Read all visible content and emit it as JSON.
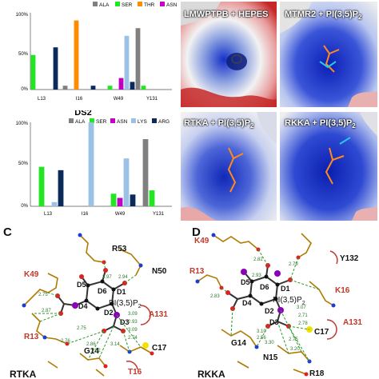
{
  "charts": {
    "colors": {
      "ALA": "#808080",
      "SER": "#21e621",
      "THR": "#ff8c00",
      "ASN": "#c000c0",
      "LYS": "#9bc2e6",
      "ARG": "#0a2a5a"
    },
    "top": {
      "title": "",
      "legend": [
        "ALA",
        "SER",
        "THR",
        "ASN",
        "LYS",
        "ARG"
      ],
      "y_ticks": [
        "100%",
        "50%",
        "0%"
      ]
    },
    "bottom": {
      "title": "DS2",
      "legend": [
        "ALA",
        "SER",
        "ASN",
        "LYS",
        "ARG"
      ],
      "y_ticks": [
        "100%",
        "50%",
        "0%"
      ]
    }
  },
  "chart_data": [
    {
      "type": "bar",
      "title": "",
      "categories": [
        "L13",
        "I16",
        "W49",
        "Y131"
      ],
      "series": [
        {
          "name": "ALA",
          "values": [
            0,
            5,
            0,
            80
          ]
        },
        {
          "name": "SER",
          "values": [
            45,
            0,
            5,
            5
          ]
        },
        {
          "name": "THR",
          "values": [
            0,
            90,
            0,
            0
          ]
        },
        {
          "name": "ASN",
          "values": [
            0,
            0,
            15,
            0
          ]
        },
        {
          "name": "LYS",
          "values": [
            0,
            0,
            70,
            0
          ]
        },
        {
          "name": "ARG",
          "values": [
            55,
            5,
            10,
            0
          ]
        }
      ],
      "ylim": [
        0,
        100
      ],
      "legend_position": "top"
    },
    {
      "type": "bar",
      "title": "DS2",
      "categories": [
        "L13",
        "I16",
        "W49",
        "Y131"
      ],
      "series": [
        {
          "name": "ALA",
          "values": [
            0,
            0,
            0,
            80
          ]
        },
        {
          "name": "SER",
          "values": [
            47,
            0,
            15,
            19
          ]
        },
        {
          "name": "ASN",
          "values": [
            0,
            0,
            10,
            0
          ]
        },
        {
          "name": "LYS",
          "values": [
            5,
            100,
            57,
            0
          ]
        },
        {
          "name": "ARG",
          "values": [
            43,
            0,
            14,
            0
          ]
        }
      ],
      "ylim": [
        0,
        100
      ],
      "legend_position": "top"
    }
  ],
  "surfaces": {
    "p1": "LMWPTPB + HEPES",
    "p2": "MTMR2 + PI(3,5)P",
    "p2_sub": "2",
    "p3": "RTKA + PI(3,5)P",
    "p3_sub": "2",
    "p4": "RKKA + PI(3,5)P",
    "p4_sub": "2"
  },
  "panel_c": {
    "letter": "C",
    "name": "RTKA",
    "ligand": "PI(3,5)P",
    "ligand_sub": "2",
    "residues_black": [
      "R53",
      "N50",
      "G14",
      "C17"
    ],
    "residues_red": [
      "K49",
      "R13",
      "A131",
      "T16"
    ],
    "atoms": [
      "D5",
      "D6",
      "D1",
      "D4",
      "D2",
      "D3"
    ],
    "distances": [
      "2.97",
      "2.94",
      "2.75",
      "2.87",
      "3.09",
      "2.93",
      "3.09",
      "2.74",
      "2.76",
      "2.86",
      "2.52",
      "3.14",
      "2.75"
    ]
  },
  "panel_d": {
    "letter": "D",
    "name": "RKKA",
    "ligand": "PI(3,5)P",
    "ligand_sub": "2",
    "residues_black": [
      "Y132",
      "C17",
      "G14",
      "N15",
      "R18"
    ],
    "residues_red": [
      "K49",
      "R13",
      "K16",
      "A131"
    ],
    "atoms": [
      "D5",
      "D6",
      "D1",
      "D4",
      "D2",
      "D3"
    ],
    "distances": [
      "2.82",
      "2.79",
      "2.83",
      "2.93",
      "3.07",
      "2.71",
      "2.78",
      "3.10",
      "2.56",
      "2.75",
      "3.30",
      "3.20"
    ]
  }
}
